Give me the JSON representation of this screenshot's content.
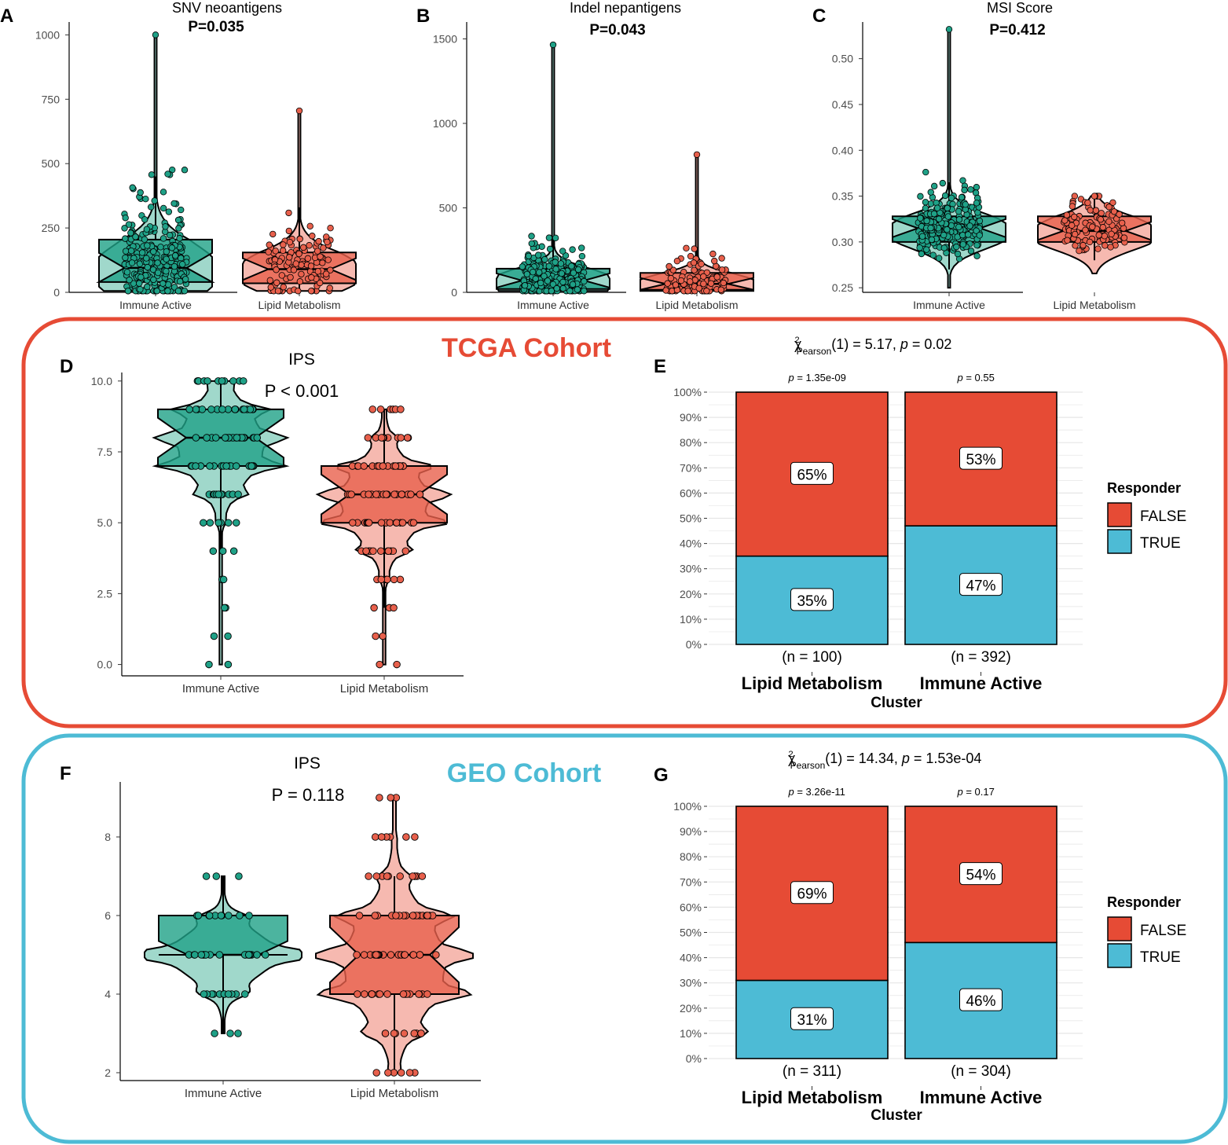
{
  "colors": {
    "immune": "#1fa187",
    "immune_light": "#8fd1c2",
    "lipid": "#e8604c",
    "lipid_light": "#f4ada2",
    "false_fill": "#e64b35",
    "true_fill": "#4dbbd5",
    "tcga_border": "#e64b35",
    "geo_border": "#4dbbd5"
  },
  "cohort_labels": {
    "tcga": "TCGA Cohort",
    "geo": "GEO Cohort"
  },
  "chart_data": [
    {
      "id": "A",
      "type": "violin-box",
      "title": "SNV neoantigens",
      "pvalue": "P=0.035",
      "categories": [
        "Immune Active",
        "Lipid Metabolism"
      ],
      "ylim": [
        0,
        1050
      ],
      "yticks": [
        0,
        250,
        500,
        750,
        1000
      ],
      "box": [
        {
          "group": "Immune Active",
          "q1": 40,
          "median": 95,
          "q3": 205,
          "lower": 20,
          "upper": 450
        },
        {
          "group": "Lipid Metabolism",
          "q1": 35,
          "median": 90,
          "q3": 155,
          "lower": 10,
          "upper": 330
        }
      ],
      "max_points": [
        {
          "group": "Immune Active",
          "value": 1000
        },
        {
          "group": "Lipid Metabolism",
          "value": 705
        }
      ]
    },
    {
      "id": "B",
      "type": "violin-box",
      "title": "Indel nepantigens",
      "pvalue": "P=0.043",
      "categories": [
        "Immune Active",
        "Lipid Metabolism"
      ],
      "ylim": [
        0,
        1600
      ],
      "yticks": [
        0,
        500,
        1000,
        1500
      ],
      "box": [
        {
          "group": "Immune Active",
          "q1": 20,
          "median": 70,
          "q3": 140,
          "lower": 0,
          "upper": 320
        },
        {
          "group": "Lipid Metabolism",
          "q1": 15,
          "median": 50,
          "q3": 115,
          "lower": 0,
          "upper": 260
        }
      ],
      "max_points": [
        {
          "group": "Immune Active",
          "value": 1465
        },
        {
          "group": "Lipid Metabolism",
          "value": 815
        }
      ]
    },
    {
      "id": "C",
      "type": "violin-box",
      "title": "MSI Score",
      "pvalue": "P=0.412",
      "categories": [
        "Immune Active",
        "Lipid Metabolism"
      ],
      "ylim": [
        0.245,
        0.54
      ],
      "yticks": [
        0.25,
        0.3,
        0.35,
        0.4,
        0.45,
        0.5
      ],
      "ytick_labels": [
        "0.25",
        "0.30",
        "0.35",
        "0.40",
        "0.45",
        "0.50"
      ],
      "box": [
        {
          "group": "Immune Active",
          "q1": 0.3,
          "median": 0.315,
          "q3": 0.328,
          "lower": 0.27,
          "upper": 0.365
        },
        {
          "group": "Lipid Metabolism",
          "q1": 0.3,
          "median": 0.312,
          "q3": 0.328,
          "lower": 0.28,
          "upper": 0.35
        }
      ],
      "max_points": [
        {
          "group": "Immune Active",
          "value": 0.532
        },
        {
          "group": "Lipid Metabolism",
          "value": 0.35
        }
      ]
    },
    {
      "id": "D",
      "type": "violin-box",
      "title": "IPS",
      "pvalue": "P < 0.001",
      "categories": [
        "Immune Active",
        "Lipid Metabolism"
      ],
      "ylim": [
        -0.4,
        10.3
      ],
      "yticks": [
        0,
        2.5,
        5,
        7.5,
        10
      ],
      "ytick_labels": [
        "0.0",
        "2.5",
        "5.0",
        "7.5",
        "10.0"
      ],
      "box": [
        {
          "group": "Immune Active",
          "q1": 7,
          "median": 8,
          "q3": 9,
          "lower": 4,
          "upper": 10
        },
        {
          "group": "Lipid Metabolism",
          "q1": 5,
          "median": 6,
          "q3": 7,
          "lower": 2,
          "upper": 9
        }
      ],
      "levels": [
        {
          "group": "Immune Active",
          "values": [
            0,
            1,
            2,
            3,
            4,
            5,
            6,
            7,
            8,
            9,
            10
          ]
        },
        {
          "group": "Lipid Metabolism",
          "values": [
            0,
            1,
            2,
            3,
            4,
            5,
            6,
            7,
            8,
            9
          ]
        }
      ]
    },
    {
      "id": "E",
      "type": "stacked-bar",
      "stat_label": "(1) = 5.17,",
      "stat_p_label": "= 0.02",
      "xlabel": "Cluster",
      "categories": [
        "Lipid Metabolism",
        "Immune Active"
      ],
      "n_labels": [
        "(n = 100)",
        "(n = 392)"
      ],
      "p_labels": [
        "= 1.35e-09",
        "= 0.55"
      ],
      "series": [
        {
          "name": "FALSE",
          "values": [
            65,
            53
          ],
          "labels": [
            "65%",
            "53%"
          ]
        },
        {
          "name": "TRUE",
          "values": [
            35,
            47
          ],
          "labels": [
            "35%",
            "47%"
          ]
        }
      ],
      "ylim": [
        0,
        100
      ],
      "yticks": [
        "0%",
        "10%",
        "20%",
        "30%",
        "40%",
        "50%",
        "60%",
        "70%",
        "80%",
        "90%",
        "100%"
      ],
      "legend": {
        "title": "Responder",
        "items": [
          "FALSE",
          "TRUE"
        ]
      }
    },
    {
      "id": "F",
      "type": "violin-box",
      "title": "IPS",
      "pvalue": "P = 0.118",
      "categories": [
        "Immune Active",
        "Lipid Metabolism"
      ],
      "ylim": [
        1.8,
        9.4
      ],
      "yticks": [
        2,
        4,
        6,
        8
      ],
      "ytick_labels": [
        "2",
        "4",
        "6",
        "8"
      ],
      "box": [
        {
          "group": "Immune Active",
          "q1": 5,
          "median": 5,
          "q3": 6,
          "lower": 3,
          "upper": 7
        },
        {
          "group": "Lipid Metabolism",
          "q1": 4,
          "median": 5,
          "q3": 6,
          "lower": 2,
          "upper": 7
        }
      ],
      "levels": [
        {
          "group": "Immune Active",
          "values": [
            3,
            4,
            5,
            6,
            7
          ]
        },
        {
          "group": "Lipid Metabolism",
          "values": [
            2,
            3,
            4,
            5,
            6,
            7,
            8,
            9
          ]
        }
      ]
    },
    {
      "id": "G",
      "type": "stacked-bar",
      "stat_label": "(1) = 14.34,",
      "stat_p_label": "= 1.53e-04",
      "xlabel": "Cluster",
      "categories": [
        "Lipid Metabolism",
        "Immune Active"
      ],
      "n_labels": [
        "(n = 311)",
        "(n = 304)"
      ],
      "p_labels": [
        "= 3.26e-11",
        "= 0.17"
      ],
      "series": [
        {
          "name": "FALSE",
          "values": [
            69,
            54
          ],
          "labels": [
            "69%",
            "54%"
          ]
        },
        {
          "name": "TRUE",
          "values": [
            31,
            46
          ],
          "labels": [
            "31%",
            "46%"
          ]
        }
      ],
      "ylim": [
        0,
        100
      ],
      "yticks": [
        "0%",
        "10%",
        "20%",
        "30%",
        "40%",
        "50%",
        "60%",
        "70%",
        "80%",
        "90%",
        "100%"
      ],
      "legend": {
        "title": "Responder",
        "items": [
          "FALSE",
          "TRUE"
        ]
      }
    }
  ]
}
